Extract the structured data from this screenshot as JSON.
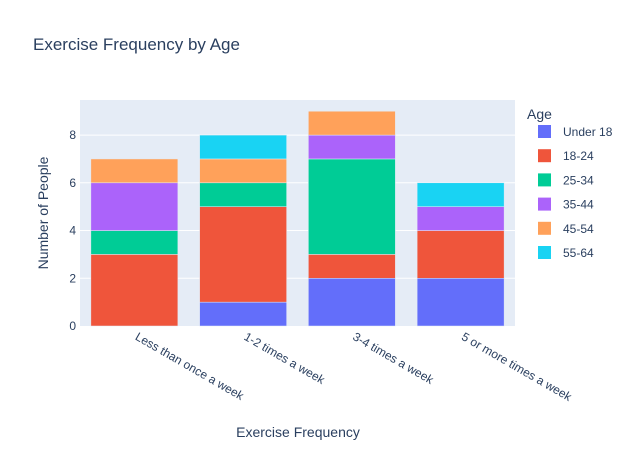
{
  "chart_data": {
    "type": "bar",
    "stacked": true,
    "title": "Exercise Frequency by Age",
    "xlabel": "Exercise Frequency",
    "ylabel": "Number of People",
    "categories": [
      "Less than once a week",
      "1-2 times a week",
      "3-4 times a week",
      "5 or more times a week"
    ],
    "ylim": [
      0,
      9.47
    ],
    "yticks": [
      0,
      2,
      4,
      6,
      8
    ],
    "grid": true,
    "legend_title": "Age",
    "legend_position": "right",
    "series": [
      {
        "name": "Under 18",
        "color": "#636efa",
        "values": [
          0,
          1,
          2,
          2
        ]
      },
      {
        "name": "18-24",
        "color": "#ef553b",
        "values": [
          3,
          4,
          1,
          2
        ]
      },
      {
        "name": "25-34",
        "color": "#00cc96",
        "values": [
          1,
          1,
          4,
          0
        ]
      },
      {
        "name": "35-44",
        "color": "#ab63fa",
        "values": [
          2,
          0,
          1,
          1
        ]
      },
      {
        "name": "45-54",
        "color": "#ffa15a",
        "values": [
          1,
          1,
          1,
          0
        ]
      },
      {
        "name": "55-64",
        "color": "#19d3f3",
        "values": [
          0,
          1,
          0,
          1
        ]
      }
    ]
  }
}
